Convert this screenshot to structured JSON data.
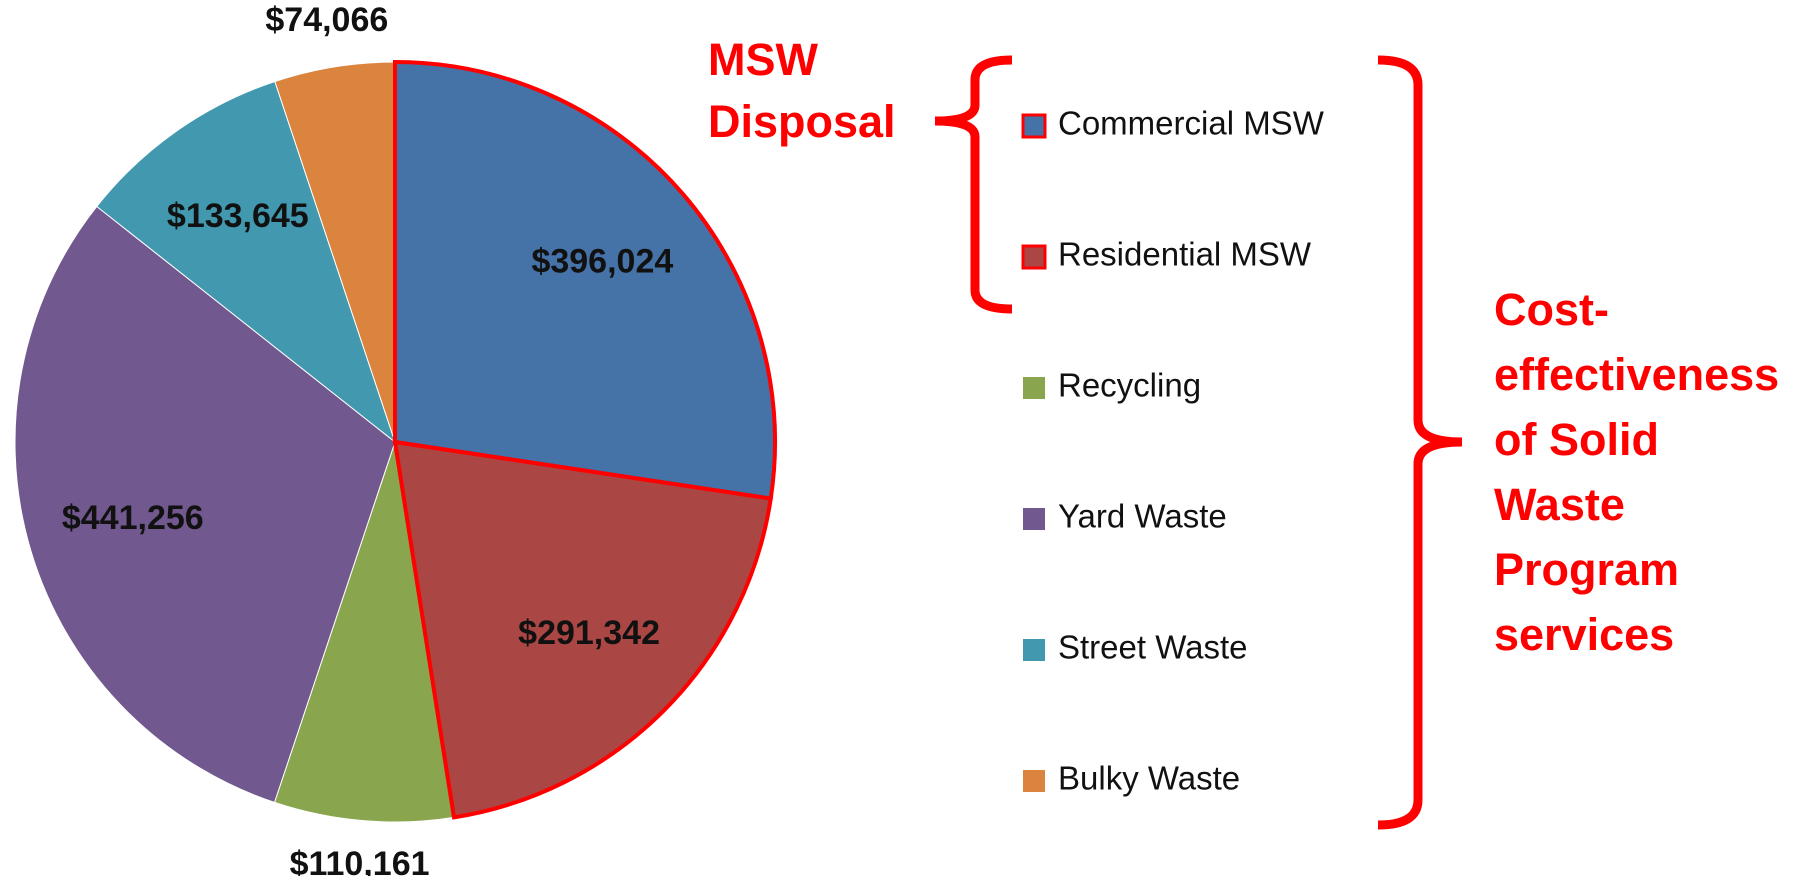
{
  "chart_data": {
    "type": "pie",
    "categories": [
      "Commercial MSW",
      "Residential MSW",
      "Recycling",
      "Yard Waste",
      "Street Waste",
      "Bulky Waste"
    ],
    "values": [
      396024,
      291342,
      110161,
      441256,
      133645,
      74066
    ],
    "value_labels": [
      "$396,024",
      "$291,342",
      "$110,161",
      "$441,256",
      "$133,645",
      "$74,066"
    ],
    "colors": [
      "#4572a7",
      "#aa4643",
      "#89a54e",
      "#71588f",
      "#4198af",
      "#db843d"
    ],
    "outlined": [
      0,
      1
    ],
    "outline_color": "#ff0000",
    "legend": "right",
    "annotations": [
      {
        "lines": [
          "MSW",
          "Disposal"
        ]
      },
      {
        "lines": [
          "Cost-",
          "effectiveness",
          "of Solid",
          "Waste",
          "Program",
          "services"
        ]
      }
    ]
  }
}
